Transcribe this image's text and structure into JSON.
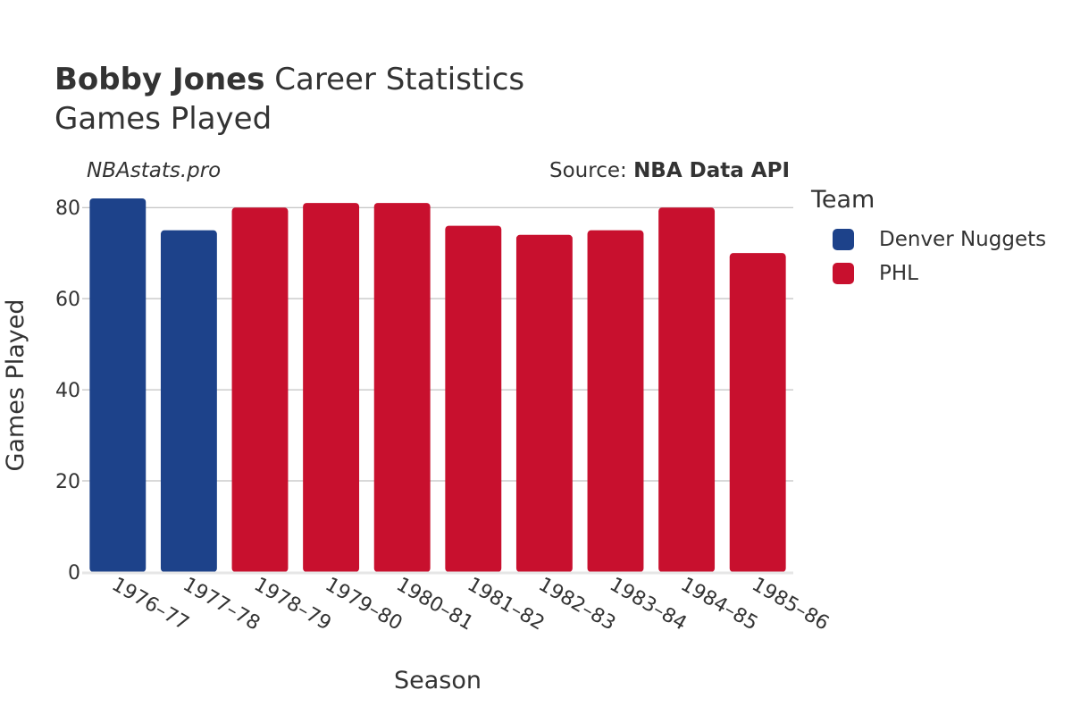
{
  "header": {
    "player_name": "Bobby Jones",
    "title_rest": "Career Statistics",
    "subtitle": "Games Played",
    "watermark": "NBAstats.pro",
    "source_prefix": "Source: ",
    "source_name": "NBA Data API"
  },
  "legend": {
    "title": "Team",
    "items": [
      {
        "label": "Denver Nuggets",
        "color": "#1d428a"
      },
      {
        "label": "PHL",
        "color": "#c8102e"
      }
    ]
  },
  "chart_data": {
    "type": "bar",
    "xlabel": "Season",
    "ylabel": "Games Played",
    "ylim": [
      0,
      82
    ],
    "yticks": [
      0,
      20,
      40,
      60,
      80
    ],
    "grid": true,
    "legend_position": "right",
    "categories": [
      "1976–77",
      "1977–78",
      "1978–79",
      "1979–80",
      "1980–81",
      "1981–82",
      "1982–83",
      "1983–84",
      "1984–85",
      "1985–86"
    ],
    "values": [
      82,
      75,
      80,
      81,
      81,
      76,
      74,
      75,
      80,
      70
    ],
    "teams": [
      "Denver Nuggets",
      "Denver Nuggets",
      "PHL",
      "PHL",
      "PHL",
      "PHL",
      "PHL",
      "PHL",
      "PHL",
      "PHL"
    ]
  }
}
